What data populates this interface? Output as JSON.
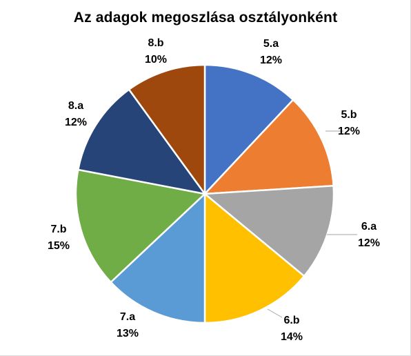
{
  "chart_data": {
    "type": "pie",
    "title": "Az adagok megoszlása osztályonként",
    "categories": [
      "5.a",
      "5.b",
      "6.a",
      "6.b",
      "7.a",
      "7.b",
      "8.a",
      "8.b"
    ],
    "values": [
      12,
      12,
      12,
      14,
      13,
      15,
      12,
      10
    ],
    "value_labels": [
      "12%",
      "12%",
      "12%",
      "14%",
      "13%",
      "15%",
      "12%",
      "10%"
    ],
    "colors": [
      "#4472C4",
      "#ED7D31",
      "#A5A5A5",
      "#FFC000",
      "#5B9BD5",
      "#70AD47",
      "#264478",
      "#9E480E"
    ],
    "start_angle_deg": 0,
    "direction": "clockwise",
    "legend": "none",
    "data_labels": "outside with leader lines"
  }
}
